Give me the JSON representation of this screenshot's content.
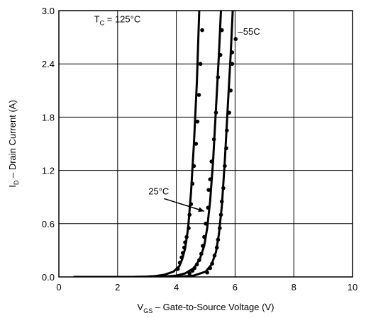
{
  "chart_data": {
    "type": "line",
    "title": "",
    "xlabel": {
      "main": "V",
      "sub": "GS",
      "rest": " – Gate-to-Source Voltage (V)"
    },
    "ylabel": {
      "main": "I",
      "sub": "D",
      "rest": " – Drain Current (A)"
    },
    "xlim": [
      0,
      10
    ],
    "ylim": [
      0,
      3.0
    ],
    "xticks": [
      0,
      2,
      4,
      6,
      8,
      10
    ],
    "xtick_labels": [
      "0",
      "2",
      "4",
      "6",
      "8",
      "10"
    ],
    "yticks": [
      0,
      0.6,
      1.2,
      1.8,
      2.4,
      3.0
    ],
    "ytick_labels": [
      "0.0",
      "0.6",
      "1.2",
      "1.8",
      "2.4",
      "3.0"
    ],
    "grid": true,
    "annotations": [
      {
        "text_main": "T",
        "text_sub": "C",
        "text_rest": " = 125°C",
        "x": 1.2,
        "y": 2.87
      },
      {
        "text_main": "–55C",
        "x": 6.1,
        "y": 2.73
      },
      {
        "text_main": "25°C",
        "x": 3.05,
        "y": 0.93,
        "arrow_to": [
          4.95,
          0.74
        ]
      }
    ],
    "series": [
      {
        "line": [
          [
            0.5,
            0.0
          ],
          [
            2.5,
            0.0
          ],
          [
            3.0,
            0.004
          ],
          [
            3.3,
            0.01
          ],
          [
            3.6,
            0.025
          ],
          [
            3.9,
            0.06
          ],
          [
            4.1,
            0.12
          ],
          [
            4.2,
            0.2
          ],
          [
            4.3,
            0.32
          ],
          [
            4.4,
            0.55
          ],
          [
            4.5,
            0.95
          ],
          [
            4.6,
            1.5
          ],
          [
            4.7,
            2.2
          ],
          [
            4.78,
            3.0
          ]
        ],
        "points": [
          [
            4.05,
            0.09
          ],
          [
            4.12,
            0.16
          ],
          [
            4.18,
            0.22
          ],
          [
            4.22,
            0.27
          ],
          [
            4.27,
            0.33
          ],
          [
            4.3,
            0.39
          ],
          [
            4.35,
            0.45
          ],
          [
            4.42,
            0.55
          ],
          [
            4.45,
            0.7
          ],
          [
            4.5,
            0.82
          ],
          [
            4.55,
            1.05
          ],
          [
            4.6,
            1.25
          ],
          [
            4.67,
            1.5
          ],
          [
            4.72,
            1.75
          ],
          [
            4.77,
            2.05
          ],
          [
            4.82,
            2.4
          ],
          [
            4.88,
            2.78
          ]
        ]
      },
      {
        "line": [
          [
            3.0,
            0.0
          ],
          [
            3.6,
            0.004
          ],
          [
            4.0,
            0.015
          ],
          [
            4.3,
            0.04
          ],
          [
            4.6,
            0.1
          ],
          [
            4.8,
            0.2
          ],
          [
            4.95,
            0.35
          ],
          [
            5.05,
            0.55
          ],
          [
            5.15,
            0.85
          ],
          [
            5.25,
            1.3
          ],
          [
            5.35,
            1.9
          ],
          [
            5.45,
            2.5
          ],
          [
            5.52,
            3.0
          ]
        ],
        "points": [
          [
            4.45,
            0.04
          ],
          [
            4.55,
            0.07
          ],
          [
            4.62,
            0.1
          ],
          [
            4.7,
            0.14
          ],
          [
            4.78,
            0.19
          ],
          [
            4.85,
            0.26
          ],
          [
            4.9,
            0.35
          ],
          [
            4.95,
            0.45
          ],
          [
            5.0,
            0.6
          ],
          [
            5.08,
            0.78
          ],
          [
            5.1,
            0.98
          ],
          [
            5.15,
            1.1
          ],
          [
            5.2,
            1.3
          ],
          [
            5.28,
            1.55
          ],
          [
            5.35,
            1.85
          ],
          [
            5.42,
            2.25
          ],
          [
            5.5,
            2.5
          ],
          [
            5.55,
            2.78
          ]
        ]
      },
      {
        "line": [
          [
            3.6,
            0.0
          ],
          [
            4.2,
            0.005
          ],
          [
            4.6,
            0.015
          ],
          [
            5.0,
            0.06
          ],
          [
            5.2,
            0.14
          ],
          [
            5.35,
            0.28
          ],
          [
            5.45,
            0.48
          ],
          [
            5.55,
            0.8
          ],
          [
            5.65,
            1.3
          ],
          [
            5.75,
            1.9
          ],
          [
            5.85,
            2.5
          ],
          [
            5.92,
            3.0
          ]
        ],
        "points": [
          [
            5.05,
            0.05
          ],
          [
            5.15,
            0.1
          ],
          [
            5.22,
            0.15
          ],
          [
            5.3,
            0.24
          ],
          [
            5.38,
            0.33
          ],
          [
            5.42,
            0.42
          ],
          [
            5.48,
            0.55
          ],
          [
            5.52,
            0.7
          ],
          [
            5.55,
            0.85
          ],
          [
            5.6,
            1.0
          ],
          [
            5.65,
            1.25
          ],
          [
            5.7,
            1.45
          ],
          [
            5.72,
            1.65
          ],
          [
            5.8,
            1.85
          ],
          [
            5.85,
            2.1
          ],
          [
            5.9,
            2.4
          ],
          [
            5.9,
            2.53
          ],
          [
            6.02,
            2.68
          ]
        ]
      }
    ]
  }
}
